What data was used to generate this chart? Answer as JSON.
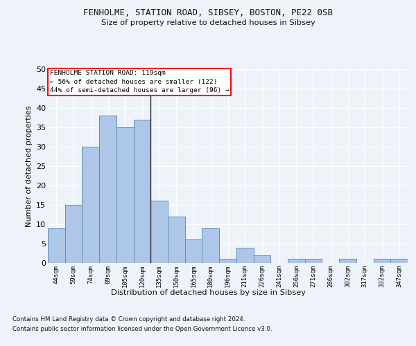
{
  "title1": "FENHOLME, STATION ROAD, SIBSEY, BOSTON, PE22 0SB",
  "title2": "Size of property relative to detached houses in Sibsey",
  "xlabel": "Distribution of detached houses by size in Sibsey",
  "ylabel": "Number of detached properties",
  "categories": [
    "44sqm",
    "59sqm",
    "74sqm",
    "89sqm",
    "105sqm",
    "120sqm",
    "135sqm",
    "150sqm",
    "165sqm",
    "180sqm",
    "196sqm",
    "211sqm",
    "226sqm",
    "241sqm",
    "256sqm",
    "271sqm",
    "286sqm",
    "302sqm",
    "317sqm",
    "332sqm",
    "347sqm"
  ],
  "values": [
    9,
    15,
    30,
    38,
    35,
    37,
    16,
    12,
    6,
    9,
    1,
    4,
    2,
    0,
    1,
    1,
    0,
    1,
    0,
    1,
    1
  ],
  "bar_color": "#aec6e8",
  "bar_edge_color": "#5a8fc0",
  "property_line_x": 5.5,
  "annotation_title": "FENHOLME STATION ROAD: 119sqm",
  "annotation_line1": "← 56% of detached houses are smaller (122)",
  "annotation_line2": "44% of semi-detached houses are larger (96) →",
  "ylim": [
    0,
    50
  ],
  "yticks": [
    0,
    5,
    10,
    15,
    20,
    25,
    30,
    35,
    40,
    45,
    50
  ],
  "footer1": "Contains HM Land Registry data © Crown copyright and database right 2024.",
  "footer2": "Contains public sector information licensed under the Open Government Licence v3.0.",
  "bg_color": "#eef2f9",
  "plot_bg_color": "#eef2f9"
}
